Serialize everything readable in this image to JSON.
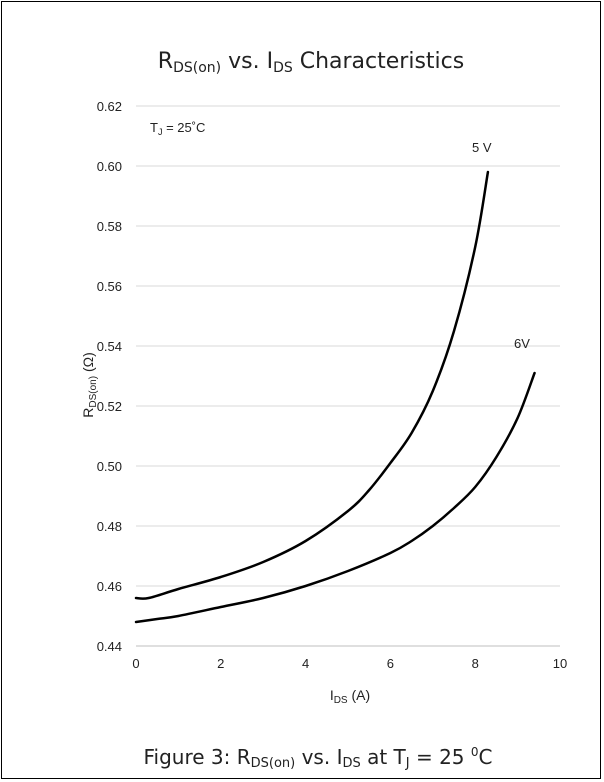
{
  "chart_data": {
    "type": "line",
    "title": {
      "main": "R",
      "sub": "DS(on)",
      "rest": " vs. I",
      "sub2": "DS",
      "rest2": " Characteristics"
    },
    "xlabel": {
      "main": "I",
      "sub": "DS",
      "rest": " (A)"
    },
    "ylabel": {
      "main": "R",
      "sub": "DS(on)",
      "rest": " (Ω)"
    },
    "xlim": [
      0,
      10
    ],
    "ylim": [
      0.44,
      0.62
    ],
    "x_ticks": [
      0,
      2,
      4,
      6,
      8,
      10
    ],
    "x_tick_labels": [
      "0",
      "2",
      "4",
      "6",
      "8",
      "10"
    ],
    "y_ticks": [
      0.44,
      0.46,
      0.48,
      0.5,
      0.52,
      0.54,
      0.56,
      0.58,
      0.6,
      0.62
    ],
    "y_tick_labels": [
      "0.44",
      "0.46",
      "0.48",
      "0.50",
      "0.52",
      "0.54",
      "0.56",
      "0.58",
      "0.60",
      "0.62"
    ],
    "grid": "horizontal",
    "annotation": {
      "main": "T",
      "sub": "J",
      "rest": " = 25˚C"
    },
    "series": [
      {
        "name": "5 V",
        "x": [
          0,
          0.3,
          1,
          2,
          3,
          4,
          5,
          5.5,
          6,
          6.5,
          7,
          7.5,
          8,
          8.3
        ],
        "y": [
          0.456,
          0.456,
          0.459,
          0.463,
          0.468,
          0.475,
          0.485,
          0.492,
          0.501,
          0.511,
          0.525,
          0.545,
          0.573,
          0.598
        ]
      },
      {
        "name": "6V",
        "x": [
          0,
          0.5,
          1,
          2,
          3,
          4,
          5,
          6,
          6.5,
          7,
          7.5,
          8,
          8.5,
          9,
          9.4
        ],
        "y": [
          0.448,
          0.449,
          0.45,
          0.453,
          0.456,
          0.46,
          0.465,
          0.471,
          0.475,
          0.48,
          0.486,
          0.493,
          0.503,
          0.516,
          0.531
        ]
      }
    ]
  },
  "caption": {
    "a": "Figure 3: R",
    "b": "DS(on)",
    "c": " vs. I",
    "d": "DS",
    "e": "  at T",
    "f": "J",
    "g": " = 25 ",
    "h": "0",
    "i": "C"
  }
}
